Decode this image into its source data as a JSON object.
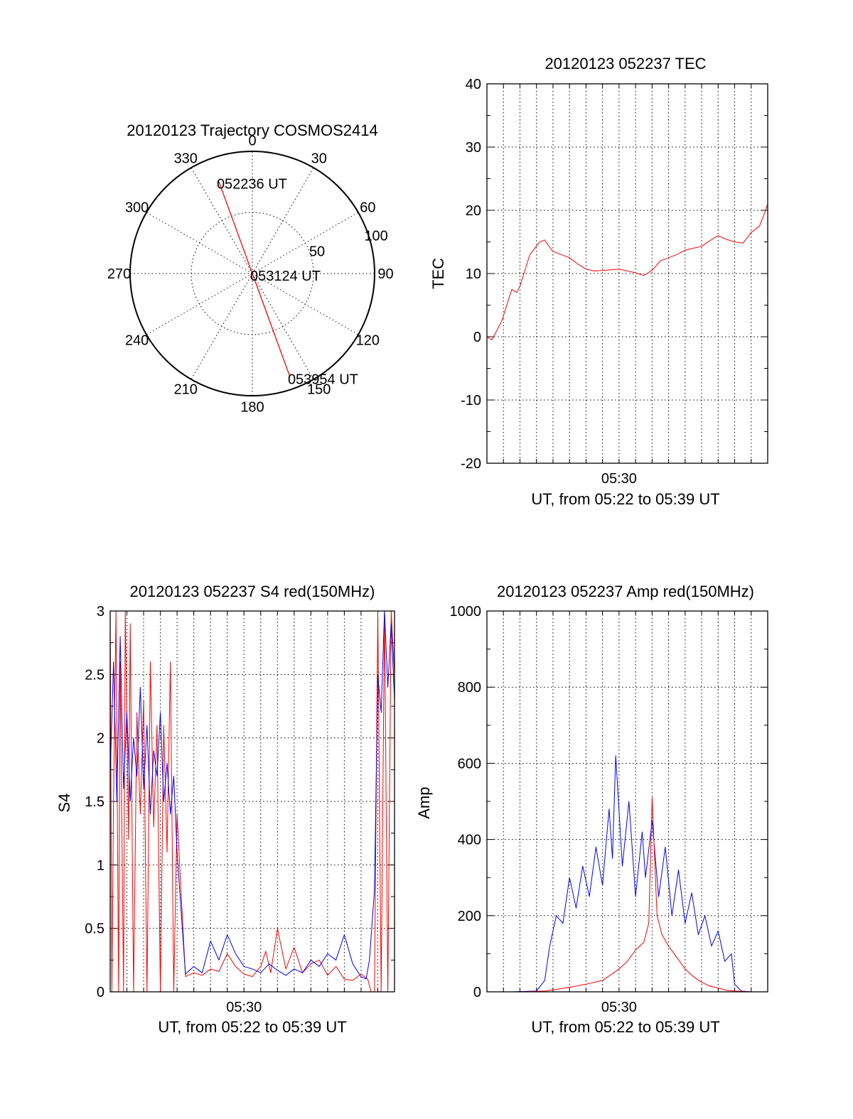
{
  "colors": {
    "background": "#ffffff",
    "axes": "#000000",
    "red_series": "#ff0000",
    "blue_series": "#0000ff"
  },
  "chart_data": [
    {
      "id": "trajectory",
      "type": "scatter",
      "subtype": "polar",
      "title": "20120123 Trajectory COSMOS2414",
      "azimuth_labels": [
        "0",
        "30",
        "60",
        "90",
        "120",
        "150",
        "180",
        "210",
        "240",
        "270",
        "300",
        "330"
      ],
      "azimuths_deg": [
        0,
        30,
        60,
        90,
        120,
        150,
        180,
        210,
        240,
        270,
        300,
        330
      ],
      "radial_labels": [
        "50",
        "100"
      ],
      "radial_values": [
        50,
        100
      ],
      "radial_max": 100,
      "grid": true,
      "series": [
        {
          "color": "#ff0000",
          "points": [
            {
              "azimuth_deg": 340,
              "radius": 80,
              "label": "052236 UT"
            },
            {
              "azimuth_deg": 340,
              "radius": 0,
              "label": "053124 UT"
            },
            {
              "azimuth_deg": 160,
              "radius": 90,
              "label": "053954 UT"
            }
          ]
        }
      ]
    },
    {
      "id": "tec",
      "type": "line",
      "title": "20120123 052237 TEC",
      "xlabel": "UT, from 05:22 to 05:39 UT",
      "ylabel": "TEC",
      "x_tick_labels": [
        "05:30"
      ],
      "x_ticks_min": [
        8
      ],
      "xlim_min": [
        0,
        17
      ],
      "ylim": [
        -20,
        40
      ],
      "y_ticks": [
        -20,
        -10,
        0,
        10,
        20,
        30,
        40
      ],
      "y_tick_labels": [
        "-20",
        "-10",
        "0",
        "10",
        "20",
        "30",
        "40"
      ],
      "grid": true,
      "series": [
        {
          "color": "#ff0000",
          "x_min": [
            0.0,
            0.3,
            0.6,
            0.9,
            1.2,
            1.5,
            1.8,
            2.0,
            2.3,
            2.6,
            2.9,
            3.2,
            3.5,
            3.7,
            4.0,
            4.5,
            5.0,
            5.5,
            6.0,
            6.5,
            7.0,
            7.5,
            8.0,
            8.5,
            9.0,
            9.5,
            10.0,
            10.5,
            11.0,
            11.5,
            12.0,
            12.5,
            13.0,
            13.5,
            14.0,
            14.5,
            15.0,
            15.5,
            16.0,
            16.5,
            16.8,
            17.0
          ],
          "values": [
            0.0,
            -0.5,
            1.0,
            2.5,
            5.0,
            7.5,
            7.0,
            8.0,
            10.5,
            13.0,
            14.0,
            15.0,
            15.3,
            14.5,
            13.5,
            13.0,
            12.5,
            11.5,
            10.7,
            10.4,
            10.5,
            10.6,
            10.7,
            10.4,
            10.1,
            9.7,
            10.5,
            12.0,
            12.5,
            13.0,
            13.7,
            14.0,
            14.3,
            15.2,
            16.0,
            15.4,
            15.0,
            14.8,
            16.5,
            17.5,
            19.5,
            21.0
          ]
        }
      ]
    },
    {
      "id": "s4",
      "type": "line",
      "title": "20120123 052237 S4 red(150MHz)",
      "xlabel": "UT, from 05:22 to 05:39 UT",
      "ylabel": "S4",
      "x_tick_labels": [
        "05:30"
      ],
      "x_ticks_min": [
        8
      ],
      "xlim_min": [
        0,
        17
      ],
      "ylim": [
        0,
        3
      ],
      "y_ticks": [
        0,
        0.5,
        1,
        1.5,
        2,
        2.5,
        3
      ],
      "y_tick_labels": [
        "0",
        "0.5",
        "1",
        "1.5",
        "2",
        "2.5",
        "3"
      ],
      "grid": true,
      "series": [
        {
          "color": "#ff0000",
          "x_min": [
            0.0,
            0.1,
            0.2,
            0.35,
            0.5,
            0.6,
            0.8,
            0.9,
            1.1,
            1.2,
            1.4,
            1.6,
            1.8,
            2.0,
            2.2,
            2.4,
            2.6,
            2.8,
            3.0,
            3.2,
            3.4,
            3.6,
            3.8,
            4.0,
            4.5,
            5.0,
            5.5,
            6.0,
            6.5,
            7.0,
            7.5,
            8.0,
            8.5,
            9.0,
            9.3,
            9.6,
            10.0,
            10.5,
            11.0,
            11.5,
            12.0,
            12.5,
            13.0,
            13.5,
            14.0,
            14.5,
            15.0,
            15.4,
            15.6,
            15.8,
            16.0,
            16.2,
            16.4,
            16.6,
            16.8,
            17.0
          ],
          "values": [
            3.0,
            0.0,
            1.5,
            3.0,
            0.0,
            2.6,
            0.0,
            3.0,
            1.2,
            2.9,
            0.0,
            2.2,
            1.4,
            2.3,
            0.0,
            2.6,
            1.3,
            2.1,
            0.0,
            2.1,
            1.1,
            2.6,
            0.0,
            1.4,
            0.12,
            0.15,
            0.13,
            0.18,
            0.16,
            0.3,
            0.2,
            0.14,
            0.12,
            0.2,
            0.32,
            0.15,
            0.5,
            0.18,
            0.35,
            0.15,
            0.22,
            0.25,
            0.13,
            0.2,
            0.1,
            0.09,
            0.14,
            0.1,
            0.0,
            0.0,
            3.0,
            0.0,
            3.0,
            0.0,
            3.0,
            2.5
          ]
        },
        {
          "color": "#0000ff",
          "x_min": [
            0.0,
            0.2,
            0.4,
            0.6,
            0.8,
            1.0,
            1.2,
            1.4,
            1.6,
            1.8,
            2.0,
            2.2,
            2.4,
            2.6,
            2.8,
            3.0,
            3.2,
            3.4,
            3.6,
            3.8,
            4.0,
            4.5,
            5.0,
            5.5,
            6.0,
            6.5,
            7.0,
            7.5,
            8.0,
            8.5,
            9.0,
            9.5,
            10.0,
            10.5,
            11.0,
            11.5,
            12.0,
            12.5,
            13.0,
            13.5,
            14.0,
            14.5,
            15.0,
            15.3,
            15.5,
            15.8,
            16.0,
            16.2,
            16.4,
            16.6,
            16.8,
            17.0
          ],
          "values": [
            1.7,
            2.6,
            1.5,
            2.8,
            1.6,
            2.2,
            1.5,
            2.0,
            1.7,
            2.4,
            1.6,
            2.1,
            1.4,
            1.9,
            1.7,
            2.2,
            1.5,
            1.8,
            1.4,
            1.7,
            1.1,
            0.14,
            0.2,
            0.15,
            0.4,
            0.25,
            0.45,
            0.3,
            0.2,
            0.18,
            0.15,
            0.22,
            0.17,
            0.13,
            0.18,
            0.15,
            0.25,
            0.2,
            0.3,
            0.25,
            0.45,
            0.22,
            0.12,
            0.1,
            0.25,
            0.8,
            2.5,
            2.2,
            3.0,
            2.4,
            2.9,
            2.3
          ]
        }
      ]
    },
    {
      "id": "amp",
      "type": "line",
      "title": "20120123 052237 Amp red(150MHz)",
      "xlabel": "UT, from 05:22 to 05:39 UT",
      "ylabel": "Amp",
      "x_tick_labels": [
        "05:30"
      ],
      "x_ticks_min": [
        8
      ],
      "xlim_min": [
        0,
        17
      ],
      "ylim": [
        0,
        1000
      ],
      "y_ticks": [
        0,
        200,
        400,
        600,
        800,
        1000
      ],
      "y_tick_labels": [
        "0",
        "200",
        "400",
        "600",
        "800",
        "1000"
      ],
      "grid": true,
      "series": [
        {
          "color": "#0000ff",
          "x_min": [
            0.0,
            1.5,
            3.0,
            3.5,
            3.8,
            4.2,
            4.6,
            5.0,
            5.4,
            5.8,
            6.2,
            6.6,
            7.0,
            7.4,
            7.6,
            7.8,
            8.2,
            8.6,
            9.0,
            9.4,
            9.6,
            10.0,
            10.4,
            10.8,
            11.2,
            11.6,
            12.0,
            12.4,
            12.8,
            13.2,
            13.6,
            14.0,
            14.4,
            14.8,
            15.0,
            15.4,
            16.0,
            17.0
          ],
          "values": [
            0,
            0,
            2,
            30,
            120,
            200,
            180,
            300,
            220,
            330,
            250,
            380,
            280,
            480,
            350,
            620,
            330,
            500,
            250,
            420,
            300,
            450,
            250,
            380,
            200,
            320,
            180,
            260,
            150,
            200,
            120,
            160,
            80,
            100,
            20,
            2,
            0,
            0
          ]
        },
        {
          "color": "#ff0000",
          "x_min": [
            0.0,
            2.0,
            3.5,
            4.0,
            5.0,
            6.0,
            7.0,
            7.5,
            8.0,
            8.5,
            9.0,
            9.5,
            9.8,
            10.0,
            10.3,
            10.6,
            11.0,
            11.5,
            12.0,
            12.5,
            13.0,
            13.5,
            14.0,
            14.5,
            15.0,
            16.0,
            17.0
          ],
          "values": [
            0,
            0,
            2,
            5,
            12,
            20,
            30,
            45,
            60,
            80,
            110,
            130,
            180,
            510,
            200,
            150,
            120,
            90,
            60,
            40,
            25,
            15,
            10,
            4,
            2,
            0,
            0
          ]
        }
      ]
    }
  ]
}
